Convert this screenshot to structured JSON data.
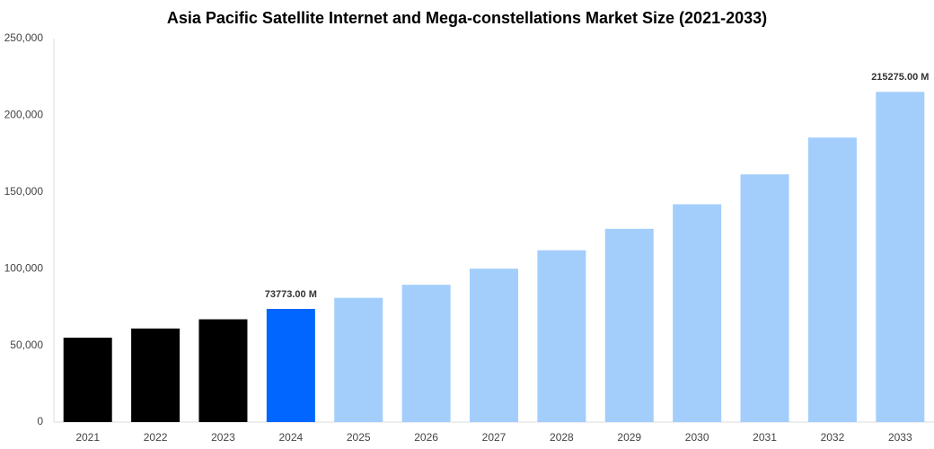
{
  "chart_data": {
    "type": "bar",
    "title": "Asia Pacific Satellite Internet and Mega-constellations Market Size (2021-2033)",
    "categories": [
      "2021",
      "2022",
      "2023",
      "2024",
      "2025",
      "2026",
      "2027",
      "2028",
      "2029",
      "2030",
      "2031",
      "2032",
      "2033"
    ],
    "values": [
      55000,
      61000,
      67000,
      73773,
      81000,
      89500,
      100000,
      112000,
      126000,
      142000,
      161500,
      185500,
      215275
    ],
    "value_labels": [
      null,
      null,
      null,
      "73773.00 M",
      null,
      null,
      null,
      null,
      null,
      null,
      null,
      null,
      "215275.00 M"
    ],
    "colors": [
      "#000000",
      "#000000",
      "#000000",
      "#0066ff",
      "#a3cefc",
      "#a3cefc",
      "#a3cefc",
      "#a3cefc",
      "#a3cefc",
      "#a3cefc",
      "#a3cefc",
      "#a3cefc",
      "#a3cefc"
    ],
    "ylim": [
      0,
      250000
    ],
    "yticks": [
      0,
      {
        "value": 50000,
        "label": "50,000"
      },
      {
        "value": 100000,
        "label": "100,000"
      },
      {
        "value": 150000,
        "label": "150,000"
      },
      {
        "value": 200000,
        "label": "200,000"
      },
      {
        "value": 250000,
        "label": "250,000"
      }
    ],
    "grid": false
  }
}
